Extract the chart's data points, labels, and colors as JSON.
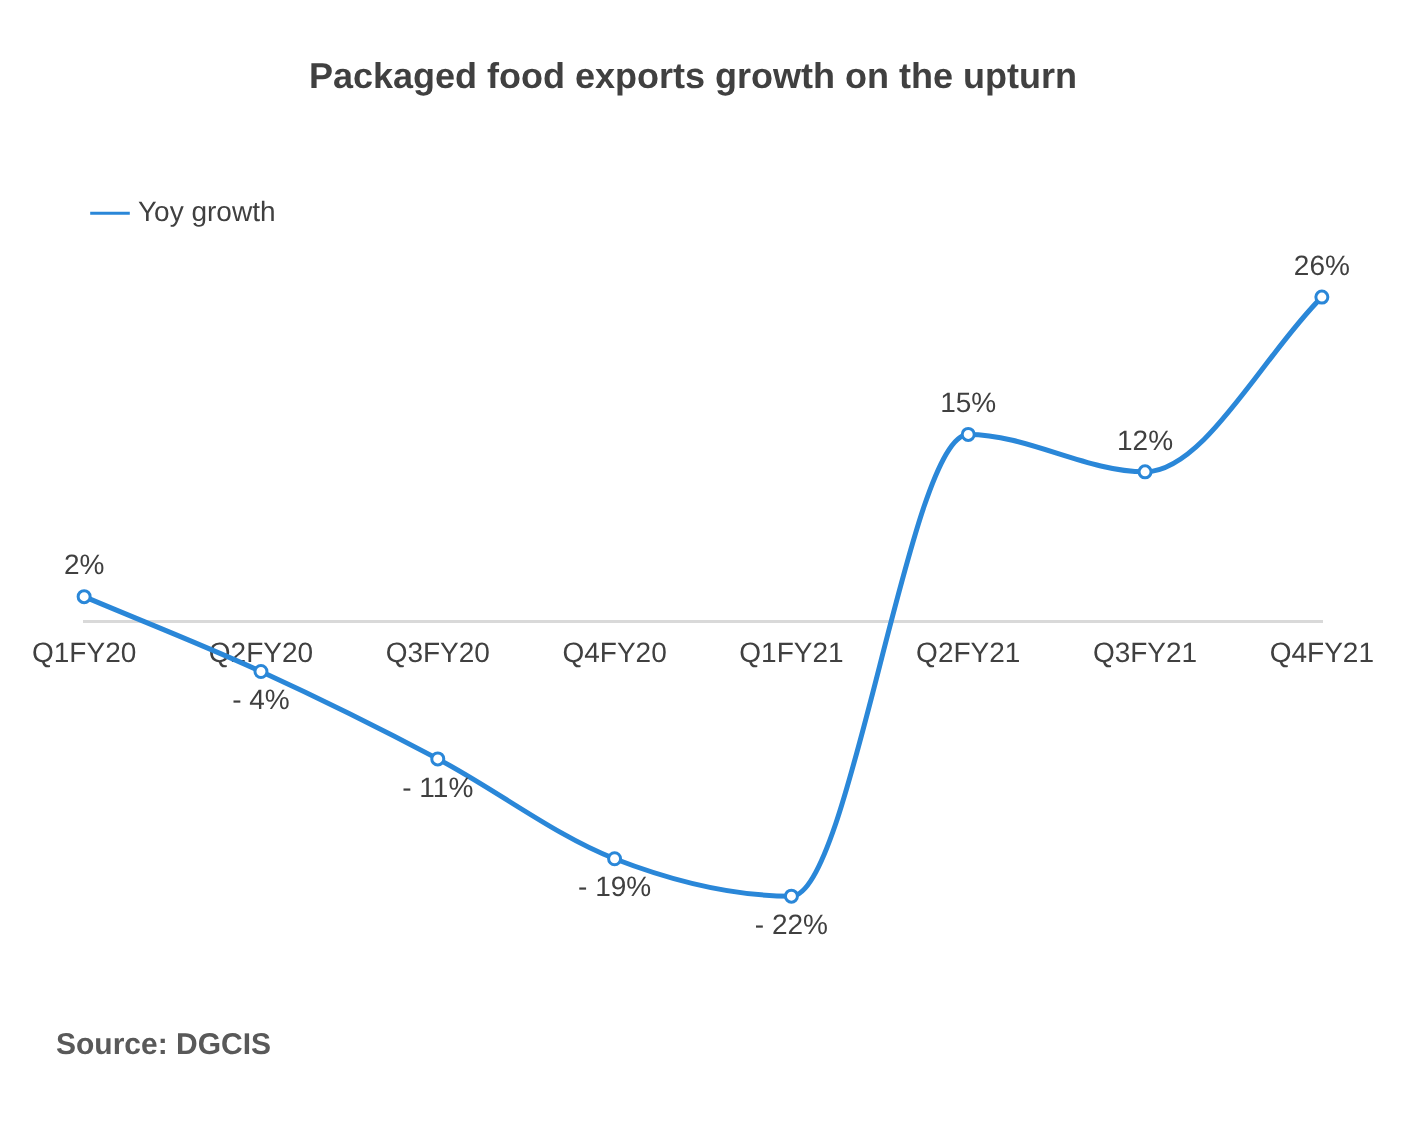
{
  "chart_data": {
    "type": "line",
    "title": "Packaged food exports growth on the upturn",
    "categories": [
      "Q1FY20",
      "Q2FY20",
      "Q3FY20",
      "Q4FY20",
      "Q1FY21",
      "Q2FY21",
      "Q3FY21",
      "Q4FY21"
    ],
    "series": [
      {
        "name": "Yoy growth",
        "color": "#2a87d8",
        "values": [
          2,
          -4,
          -11,
          -19,
          -22,
          15,
          12,
          26
        ],
        "value_labels": [
          "2%",
          "- 4%",
          "- 11%",
          "- 19%",
          "- 22%",
          "15%",
          "12%",
          "26%"
        ]
      }
    ],
    "tick_labels": "x",
    "grid": false,
    "legend": "top left",
    "marker": "circle",
    "line_style": "solid",
    "annotations": [
      "Source: DGCIS"
    ]
  }
}
